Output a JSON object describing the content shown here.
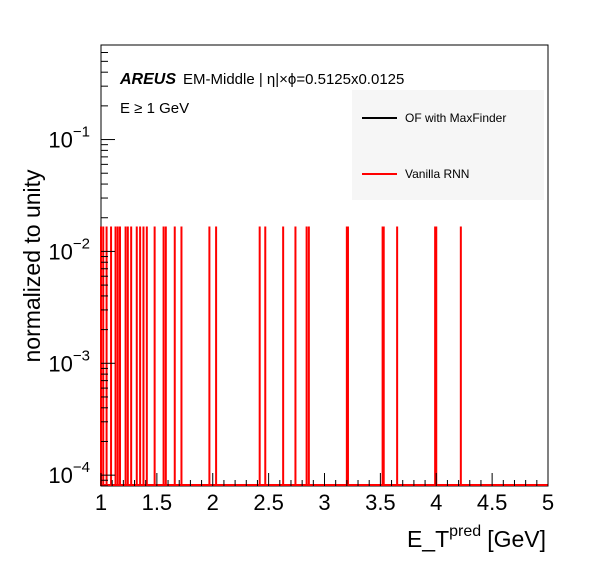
{
  "chart_data": {
    "type": "histogram",
    "scale": {
      "x": "linear",
      "y": "log"
    },
    "xlim": [
      1,
      5
    ],
    "ylim": [
      8e-05,
      0.7
    ],
    "xlabel": {
      "base": "E_T",
      "sup": "pred",
      "unit": "[GeV]"
    },
    "ylabel": "normalized to unity",
    "x_ticks": [
      "1",
      "1.5",
      "2",
      "2.5",
      "3",
      "3.5",
      "4",
      "4.5",
      "5"
    ],
    "y_ticks": [
      {
        "value": 0.0001,
        "base": "10",
        "exp": "−4"
      },
      {
        "value": 0.001,
        "base": "10",
        "exp": "−3"
      },
      {
        "value": 0.01,
        "base": "10",
        "exp": "−2"
      },
      {
        "value": 0.1,
        "base": "10",
        "exp": "−1"
      }
    ],
    "annotations": {
      "experiment": "AREUS",
      "region": "EM-Middle | η|×ϕ=0.5125x0.0125",
      "cut": "E ≥ 1 GeV"
    },
    "legend": {
      "position": "top-right",
      "entries": [
        {
          "label": "OF with MaxFinder",
          "color": "#000000"
        },
        {
          "label": "Vanilla RNN",
          "color": "#ff0000"
        }
      ]
    },
    "series": [
      {
        "name": "Vanilla RNN",
        "color": "#ff0000",
        "bin_value": 0.0167,
        "entries_x": [
          1.0,
          1.02,
          1.05,
          1.09,
          1.13,
          1.15,
          1.17,
          1.22,
          1.24,
          1.27,
          1.32,
          1.35,
          1.38,
          1.41,
          1.48,
          1.56,
          1.58,
          1.66,
          1.72,
          1.97,
          2.03,
          2.42,
          2.47,
          2.63,
          2.74,
          2.84,
          2.86,
          3.2,
          3.21,
          3.52,
          3.53,
          3.65,
          3.99,
          4.0,
          4.22
        ]
      }
    ]
  }
}
